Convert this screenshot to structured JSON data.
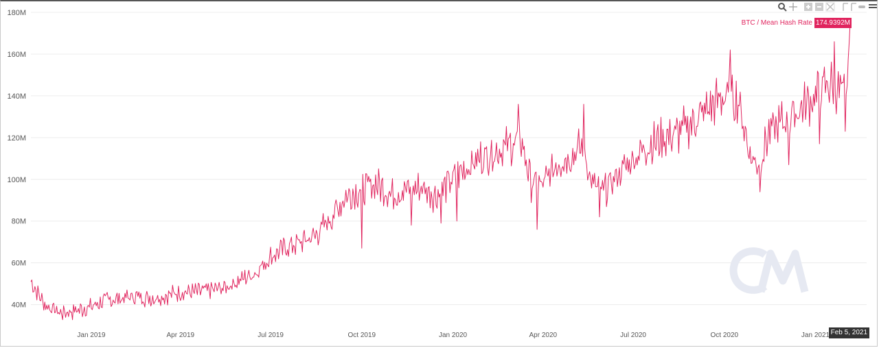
{
  "chart_data": {
    "type": "line",
    "series": [
      {
        "name": "BTC / Mean Hash Rate",
        "color": "#e0245e",
        "x_start": "2018-11-01",
        "x_end": "2021-02-05",
        "anchors": [
          [
            "2018-11-01",
            51
          ],
          [
            "2018-11-15",
            40
          ],
          [
            "2018-12-01",
            36
          ],
          [
            "2018-12-15",
            37
          ],
          [
            "2019-01-01",
            39
          ],
          [
            "2019-01-15",
            42
          ],
          [
            "2019-02-01",
            43
          ],
          [
            "2019-02-15",
            44
          ],
          [
            "2019-03-01",
            43
          ],
          [
            "2019-03-15",
            44
          ],
          [
            "2019-04-01",
            46
          ],
          [
            "2019-04-15",
            46
          ],
          [
            "2019-05-01",
            47
          ],
          [
            "2019-05-15",
            48
          ],
          [
            "2019-06-01",
            52
          ],
          [
            "2019-06-15",
            55
          ],
          [
            "2019-07-01",
            63
          ],
          [
            "2019-07-15",
            67
          ],
          [
            "2019-08-01",
            70
          ],
          [
            "2019-08-15",
            73
          ],
          [
            "2019-09-01",
            82
          ],
          [
            "2019-09-15",
            92
          ],
          [
            "2019-10-01",
            95
          ],
          [
            "2019-10-15",
            98
          ],
          [
            "2019-11-01",
            93
          ],
          [
            "2019-11-15",
            95
          ],
          [
            "2019-12-01",
            96
          ],
          [
            "2019-12-15",
            92
          ],
          [
            "2020-01-01",
            100
          ],
          [
            "2020-01-15",
            106
          ],
          [
            "2020-02-01",
            111
          ],
          [
            "2020-02-15",
            114
          ],
          [
            "2020-03-01",
            117
          ],
          [
            "2020-03-10",
            119
          ],
          [
            "2020-03-20",
            98
          ],
          [
            "2020-04-01",
            97
          ],
          [
            "2020-04-15",
            108
          ],
          [
            "2020-05-01",
            112
          ],
          [
            "2020-05-12",
            116
          ],
          [
            "2020-05-20",
            98
          ],
          [
            "2020-06-01",
            94
          ],
          [
            "2020-06-15",
            102
          ],
          [
            "2020-07-01",
            110
          ],
          [
            "2020-07-15",
            116
          ],
          [
            "2020-08-01",
            120
          ],
          [
            "2020-08-15",
            122
          ],
          [
            "2020-09-01",
            128
          ],
          [
            "2020-09-15",
            134
          ],
          [
            "2020-10-01",
            140
          ],
          [
            "2020-10-15",
            138
          ],
          [
            "2020-10-28",
            110
          ],
          [
            "2020-11-05",
            108
          ],
          [
            "2020-11-15",
            122
          ],
          [
            "2020-12-01",
            128
          ],
          [
            "2020-12-15",
            133
          ],
          [
            "2021-01-01",
            140
          ],
          [
            "2021-01-15",
            146
          ],
          [
            "2021-01-25",
            143
          ],
          [
            "2021-02-01",
            138
          ],
          [
            "2021-02-05",
            174.9392
          ]
        ],
        "spikes": [
          [
            "2019-10-01",
            67
          ],
          [
            "2019-11-20",
            78
          ],
          [
            "2019-12-20",
            79
          ],
          [
            "2020-01-05",
            80
          ],
          [
            "2020-03-07",
            136
          ],
          [
            "2020-03-26",
            76
          ],
          [
            "2020-05-12",
            136
          ],
          [
            "2020-05-28",
            82
          ],
          [
            "2020-10-07",
            162
          ],
          [
            "2020-11-06",
            94
          ],
          [
            "2020-12-05",
            107
          ],
          [
            "2021-01-05",
            117
          ],
          [
            "2021-01-20",
            166
          ],
          [
            "2021-01-31",
            123
          ]
        ]
      }
    ],
    "ylim": [
      32,
      180
    ],
    "y_ticks": [
      "40M",
      "60M",
      "80M",
      "100M",
      "120M",
      "140M",
      "160M",
      "180M"
    ],
    "y_tick_values": [
      40,
      60,
      80,
      100,
      120,
      140,
      160,
      180
    ],
    "x_ticks": [
      "Jan 2019",
      "Apr 2019",
      "Jul 2019",
      "Oct 2019",
      "Jan 2020",
      "Apr 2020",
      "Jul 2020",
      "Oct 2020",
      "Jan 2021"
    ],
    "x_tick_dates": [
      "2019-01-01",
      "2019-04-01",
      "2019-07-01",
      "2019-10-01",
      "2020-01-01",
      "2020-04-01",
      "2020-07-01",
      "2020-10-01",
      "2021-01-01"
    ],
    "grid": true,
    "last_value_label": "174.9392M",
    "last_date_label": "Feb 5, 2021",
    "watermark": "CM"
  },
  "toolbar": {
    "icons": [
      "zoom-icon",
      "pan-icon",
      "zoom-in-icon",
      "zoom-out-icon",
      "reset-zoom-icon",
      "flag-icon",
      "flag-icon",
      "collapse-icon",
      "menu-icon"
    ]
  }
}
